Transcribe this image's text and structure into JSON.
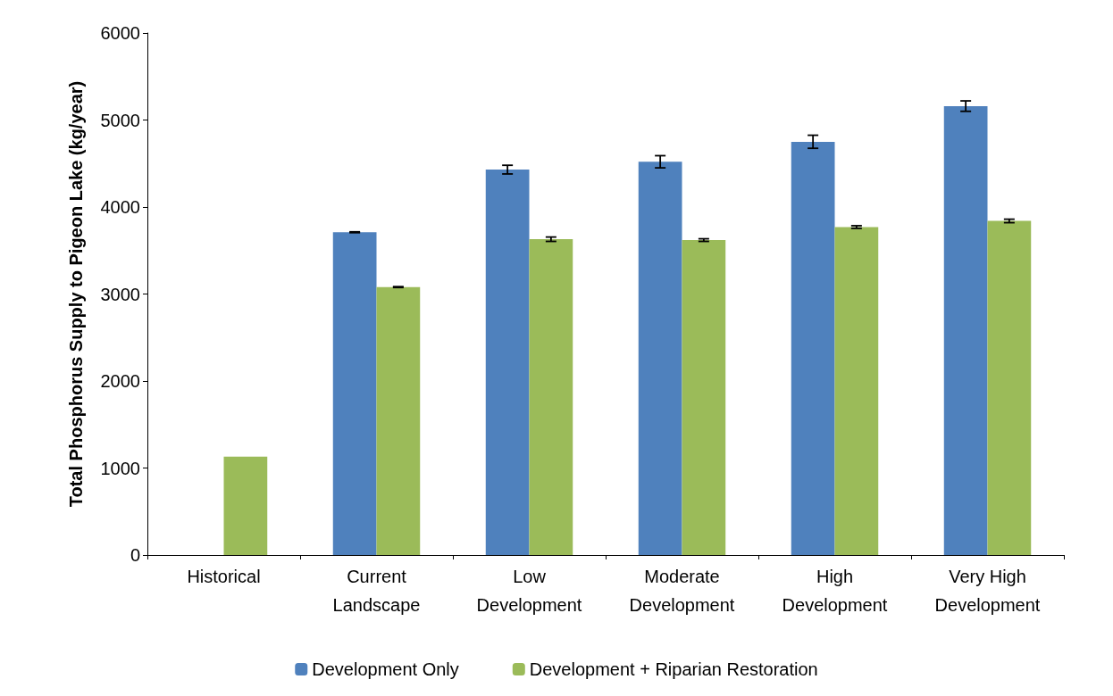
{
  "chart_data": {
    "type": "bar",
    "ylabel": "Total Phosphorus Supply to Pigeon Lake (kg/year)",
    "categories": [
      "Historical",
      "Current\nLandscape",
      "Low\nDevelopment",
      "Moderate\nDevelopment",
      "High\nDevelopment",
      "Very High\nDevelopment"
    ],
    "series": [
      {
        "name": "Development Only",
        "color": "#4f81bd",
        "values": [
          null,
          3710,
          4430,
          4520,
          4750,
          5160
        ],
        "errors": [
          null,
          5,
          50,
          70,
          75,
          60
        ]
      },
      {
        "name": "Development + Riparian Restoration",
        "color": "#9bbb59",
        "values": [
          1130,
          3080,
          3630,
          3620,
          3770,
          3840
        ],
        "errors": [
          null,
          5,
          25,
          15,
          15,
          20
        ]
      }
    ],
    "ylim": [
      0,
      6000
    ],
    "yticks": [
      0,
      1000,
      2000,
      3000,
      4000,
      5000,
      6000
    ],
    "grid": false,
    "legend": "bottom"
  }
}
